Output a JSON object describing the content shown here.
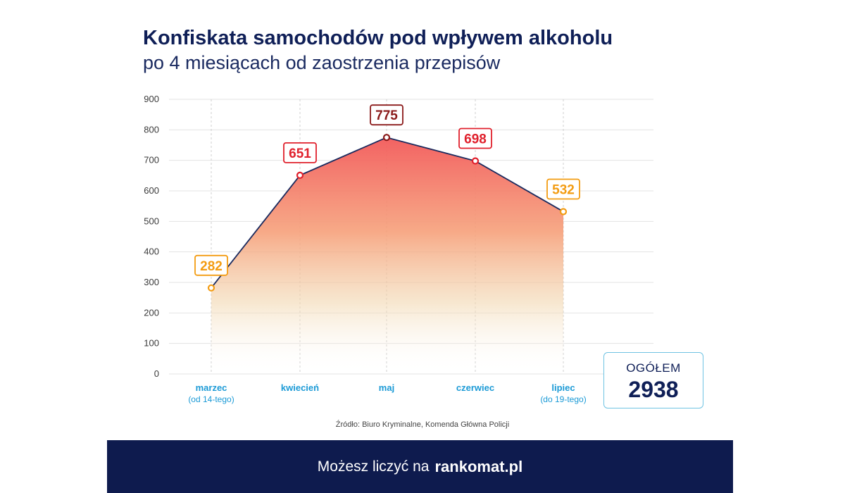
{
  "header": {
    "title": "Konfiskata samochodów pod wpływem alkoholu",
    "subtitle": "po 4 miesiącach od zaostrzenia przepisów"
  },
  "chart_data": {
    "type": "area",
    "title": "Konfiskata samochodów pod wpływem alkoholu",
    "subtitle": "po 4 miesiącach od zaostrzenia przepisów",
    "categories": [
      "marzec",
      "kwiecień",
      "maj",
      "czerwiec",
      "lipiec"
    ],
    "category_notes": [
      "(od 14-tego)",
      "",
      "",
      "",
      "(do 19-tego)"
    ],
    "values": [
      282,
      651,
      775,
      698,
      532
    ],
    "ylim": [
      0,
      900
    ],
    "yticks": [
      0,
      100,
      200,
      300,
      400,
      500,
      600,
      700,
      800,
      900
    ],
    "xlabel": "",
    "ylabel": "",
    "grid": true,
    "legend": "none",
    "colors": {
      "line": "#1a2a5e",
      "grid": "#e3e3e3",
      "fill_top": "#f25a5a",
      "fill_mid": "#f7b079",
      "fill_low": "#efe4c4",
      "label_orange": "#f39c12",
      "label_red": "#e0202c",
      "label_darkred": "#8b1a1a"
    },
    "label_colors": [
      "#f39c12",
      "#e0202c",
      "#8b1a1a",
      "#e0202c",
      "#f39c12"
    ]
  },
  "summary": {
    "total_label": "OGÓŁEM",
    "total_value": "2938"
  },
  "source": "Źródło: Biuro Kryminalne, Komenda Główna Policji",
  "footer": {
    "text": "Możesz liczyć na",
    "brand": "rankomat.pl"
  }
}
